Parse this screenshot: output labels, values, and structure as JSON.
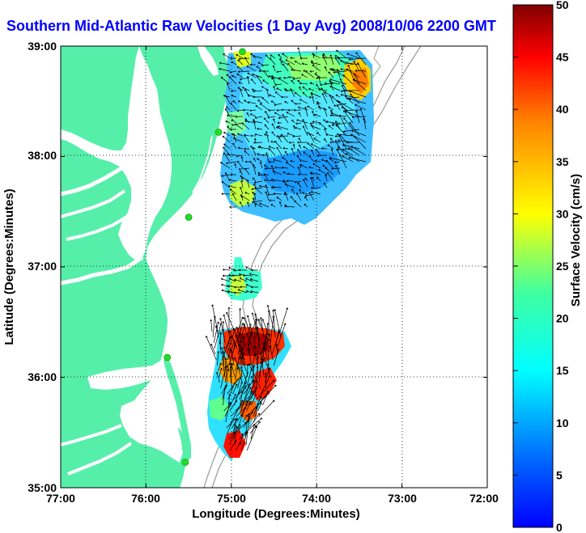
{
  "title": "Southern Mid-Atlantic Raw Velocities (1 Day Avg) 2008/10/06 2200 GMT",
  "axes": {
    "xlabel": "Longitude (Degrees:Minutes)",
    "ylabel": "Latitude (Degrees:Minutes)",
    "x_ticks": [
      "77:00",
      "76:00",
      "75:00",
      "74:00",
      "73:00",
      "72:00"
    ],
    "y_ticks": [
      "39:00",
      "38:00",
      "37:00",
      "36:00",
      "35:00"
    ],
    "xlim": [
      -77,
      -72
    ],
    "ylim": [
      35,
      39
    ],
    "grid": "dotted"
  },
  "colorbar": {
    "label": "Surface Velocity (cm/s)",
    "ticks": [
      "0",
      "5",
      "10",
      "15",
      "20",
      "25",
      "30",
      "35",
      "40",
      "45",
      "50"
    ],
    "range": [
      0,
      50
    ],
    "colormap": "jet"
  },
  "colors": {
    "land": "#55efaa",
    "title": "#0000ff",
    "station": "#22dd22"
  },
  "stations": [
    {
      "lon": -74.87,
      "lat": 38.95
    },
    {
      "lon": -75.15,
      "lat": 38.22
    },
    {
      "lon": -75.5,
      "lat": 37.45
    },
    {
      "lon": -75.75,
      "lat": 36.18
    },
    {
      "lon": -75.54,
      "lat": 35.23
    }
  ]
}
